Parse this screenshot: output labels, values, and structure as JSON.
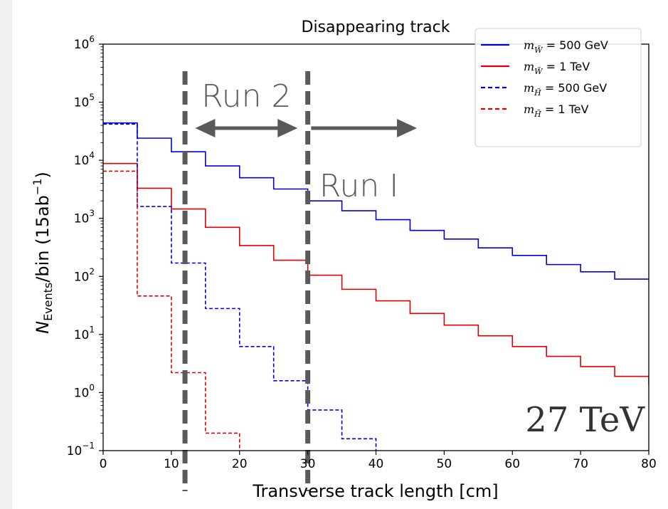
{
  "chart_data": {
    "type": "line",
    "title": "Disappearing track",
    "xlabel": "Transverse track length [cm]",
    "ylabel_main": "N",
    "ylabel_sub": "Events",
    "ylabel_rest": "/bin (15ab",
    "ylabel_sup": "−1",
    "ylabel_close": ")",
    "xlim": [
      0,
      80
    ],
    "ylim": [
      0.1,
      1000000
    ],
    "yscale": "log",
    "grid": false,
    "legend_position": "top-right",
    "x_ticks": [
      0,
      10,
      20,
      30,
      40,
      50,
      60,
      70,
      80
    ],
    "y_ticks": [
      {
        "value": 0.1,
        "base": "10",
        "exp": "−1"
      },
      {
        "value": 1,
        "base": "10",
        "exp": "0"
      },
      {
        "value": 10,
        "base": "10",
        "exp": "1"
      },
      {
        "value": 100,
        "base": "10",
        "exp": "2"
      },
      {
        "value": 1000,
        "base": "10",
        "exp": "3"
      },
      {
        "value": 10000,
        "base": "10",
        "exp": "4"
      },
      {
        "value": 100000,
        "base": "10",
        "exp": "5"
      },
      {
        "value": 1000000,
        "base": "10",
        "exp": "6"
      }
    ],
    "bin_edges": [
      0,
      5,
      10,
      15,
      20,
      25,
      30,
      35,
      40,
      45,
      50,
      55,
      60,
      65,
      70,
      75,
      80
    ],
    "series": [
      {
        "legend_sym": "W",
        "legend_val": "500 GeV",
        "color": "#0000dd",
        "dashed": false,
        "values": [
          44000,
          24000,
          14000,
          8000,
          5000,
          3200,
          2000,
          1350,
          950,
          620,
          440,
          310,
          230,
          160,
          120,
          90
        ]
      },
      {
        "legend_sym": "W",
        "legend_val": "1 TeV",
        "color": "#e00000",
        "dashed": false,
        "values": [
          8800,
          3300,
          1450,
          700,
          340,
          190,
          105,
          60,
          38,
          23,
          14.5,
          9.5,
          6.2,
          4.2,
          2.8,
          1.9
        ]
      },
      {
        "legend_sym": "H",
        "legend_val": "500 GeV",
        "color": "#0000dd",
        "dashed": true,
        "values": [
          42000,
          1600,
          170,
          28,
          6.2,
          1.6,
          0.5,
          0.16,
          0.08,
          0.05,
          0.05,
          0.05,
          0.05,
          0.05,
          0.05,
          0.05
        ]
      },
      {
        "legend_sym": "H",
        "legend_val": "1 TeV",
        "color": "#e00000",
        "dashed": true,
        "values": [
          6500,
          46,
          2.2,
          0.2,
          0.05,
          0.05,
          0.05,
          0.05,
          0.05,
          0.05,
          0.05,
          0.05,
          0.05,
          0.05,
          0.05,
          0.05
        ]
      }
    ],
    "annotations": {
      "run2_label": "Run 2",
      "run1_label": "Run I",
      "energy_label": "27 TeV",
      "run2_cut_x": 12,
      "run1_cut_x": 30,
      "run2_arrow": [
        13.5,
        28.5
      ],
      "run1_arrow": [
        30.5,
        46
      ]
    }
  }
}
